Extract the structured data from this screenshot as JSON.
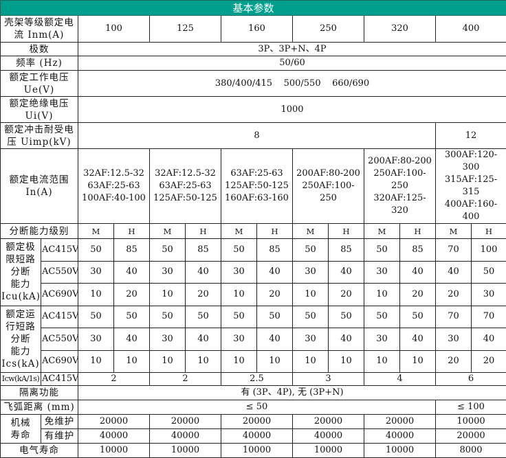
{
  "title": "基本参数",
  "frame_current": {
    "label": "壳架等级额定电\n流 Inm(A)",
    "values": [
      "100",
      "125",
      "160",
      "250",
      "320",
      "400"
    ]
  },
  "poles": {
    "label": "极数",
    "value": "3P、3P+N、4P"
  },
  "frequency": {
    "label": "频率 (Hz)",
    "value": "50/60"
  },
  "ue": {
    "label": "额定工作电压\nUe(V)",
    "value": "380/400/415    500/550    660/690"
  },
  "ui": {
    "label": "额定绝缘电压\nUi(V)",
    "value": "1000"
  },
  "uimp": {
    "label": "额定冲击耐受电\n压 Uimp(kV)",
    "values": [
      "8",
      "12"
    ]
  },
  "in_range": {
    "label": "额定电流范围\nIn(A)",
    "values": [
      "32AF:12.5-32\n63AF:25-63\n100AF:40-100",
      "32AF:12.5-32\n63AF:25-63\n125AF:50-125",
      "63AF:25-63\n125AF:50-125\n160AF:63-160",
      "200AF:80-200\n250AF:100-250",
      "200AF:80-200\n250AF:100-250\n320AF:125-320",
      "300AF:120-300\n315AF:125-315\n400AF:160-400"
    ]
  },
  "breaking_class": {
    "label": "分断能力级别",
    "values": [
      "M",
      "H",
      "M",
      "H",
      "M",
      "H",
      "M",
      "H",
      "M",
      "H",
      "M",
      "H"
    ]
  },
  "icu": {
    "label": "额定极\n限短路\n分断\n能力\nIcu(kA)",
    "rows": [
      {
        "voltage": "AC415V",
        "values": [
          "50",
          "85",
          "50",
          "85",
          "50",
          "85",
          "50",
          "85",
          "50",
          "85",
          "70",
          "100"
        ]
      },
      {
        "voltage": "AC550V",
        "values": [
          "30",
          "40",
          "30",
          "40",
          "30",
          "40",
          "30",
          "40",
          "30",
          "40",
          "40",
          "50"
        ]
      },
      {
        "voltage": "AC690V",
        "values": [
          "10",
          "20",
          "10",
          "20",
          "10",
          "20",
          "10",
          "20",
          "10",
          "20",
          "20",
          "30"
        ]
      }
    ]
  },
  "ics": {
    "label": "额定运\n行短路\n分断\n能力\nIcs(kA)",
    "rows": [
      {
        "voltage": "AC415V",
        "values": [
          "50",
          "50",
          "50",
          "50",
          "50",
          "50",
          "50",
          "50",
          "50",
          "50",
          "70",
          "70"
        ]
      },
      {
        "voltage": "AC550V",
        "values": [
          "30",
          "40",
          "30",
          "40",
          "30",
          "40",
          "30",
          "40",
          "30",
          "40",
          "30",
          "40"
        ]
      },
      {
        "voltage": "AC690V",
        "values": [
          "10",
          "10",
          "10",
          "10",
          "10",
          "10",
          "10",
          "10",
          "10",
          "10",
          "20",
          "20"
        ]
      }
    ]
  },
  "icw": {
    "label": "Icw(kA/1s)",
    "voltage": "AC415V",
    "values": [
      "2",
      "2",
      "2.5",
      "3",
      "4",
      "6"
    ]
  },
  "isolation": {
    "label": "隔离功能",
    "value": "有 (3P、4P), 无 (3P+N)"
  },
  "arc_distance": {
    "label": "飞弧距离 (mm)",
    "values": [
      "≤ 50",
      "≤ 100"
    ]
  },
  "mechanical_life": {
    "label": "机械\n寿命",
    "rows": [
      {
        "label": "免维护",
        "values": [
          "20000",
          "20000",
          "20000",
          "20000",
          "20000",
          "10000"
        ]
      },
      {
        "label": "有维护",
        "values": [
          "40000",
          "40000",
          "40000",
          "40000",
          "40000",
          "20000"
        ]
      }
    ]
  },
  "electrical_life": {
    "label": "电气寿命",
    "values": [
      "10000",
      "10000",
      "10000",
      "10000",
      "10000",
      "8000"
    ]
  }
}
